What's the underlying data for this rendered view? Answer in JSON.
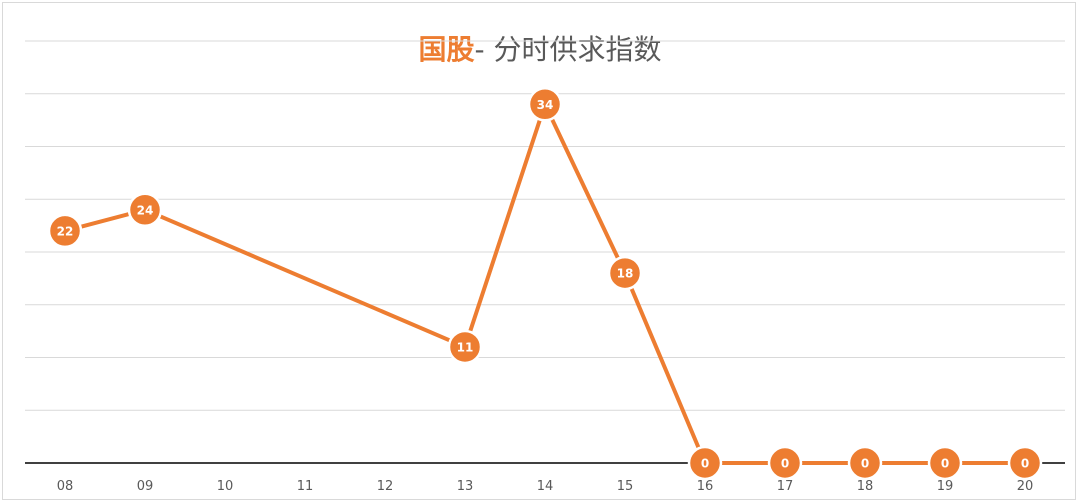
{
  "chart_data": {
    "type": "line",
    "title_accent": "国股",
    "title_rest": "- 分时供求指数",
    "categories": [
      "08",
      "09",
      "10",
      "11",
      "12",
      "13",
      "14",
      "15",
      "16",
      "17",
      "18",
      "19",
      "20"
    ],
    "series": [
      {
        "values": [
          22,
          24,
          null,
          null,
          null,
          11,
          34,
          18,
          0,
          0,
          0,
          0,
          0
        ],
        "color": "#ed7d31"
      }
    ],
    "ylim": [
      0,
      40
    ],
    "grid": true,
    "legend": "none"
  }
}
